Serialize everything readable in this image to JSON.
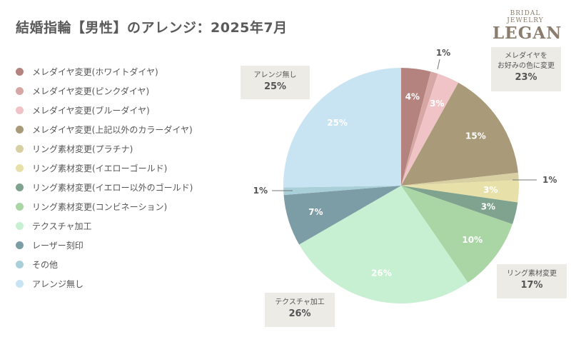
{
  "title": "結婚指輪【男性】のアレンジ：2025年7月",
  "logo": {
    "sub": "BRIDAL JEWELRY",
    "main": "LEGAN"
  },
  "chart_data": {
    "type": "pie",
    "title": "結婚指輪【男性】のアレンジ：2025年7月",
    "legend_position": "left",
    "slices": [
      {
        "label": "メレダイヤ変更(ホワイトダイヤ)",
        "value": 4,
        "display": "4%",
        "color": "#b5837f"
      },
      {
        "label": "メレダイヤ変更(ピンクダイヤ)",
        "value": 1,
        "display": "1%",
        "color": "#d6a7a5"
      },
      {
        "label": "メレダイヤ変更(ブルーダイヤ)",
        "value": 3,
        "display": "3%",
        "color": "#f0c4c6"
      },
      {
        "label": "メレダイヤ変更(上記以外のカラーダイヤ)",
        "value": 15,
        "display": "15%",
        "color": "#a99a79"
      },
      {
        "label": "リング素材変更(プラチナ)",
        "value": 1,
        "display": "1%",
        "color": "#d8cfa3"
      },
      {
        "label": "リング素材変更(イエローゴールド)",
        "value": 3,
        "display": "3%",
        "color": "#e7e1a9"
      },
      {
        "label": "リング素材変更(イエロー以外のゴールド)",
        "value": 3,
        "display": "3%",
        "color": "#7fa38e"
      },
      {
        "label": "リング素材変更(コンビネーション)",
        "value": 10,
        "display": "10%",
        "color": "#a9d6a4"
      },
      {
        "label": "テクスチャ加工",
        "value": 26,
        "display": "26%",
        "color": "#c7f0d2"
      },
      {
        "label": "レーザー刻印",
        "value": 7,
        "display": "7%",
        "color": "#7c9ca6"
      },
      {
        "label": "その他",
        "value": 1,
        "display": "1%",
        "color": "#a9cfd9"
      },
      {
        "label": "アレンジ無し",
        "value": 25,
        "display": "25%",
        "color": "#c8e3f2"
      }
    ]
  },
  "callouts": {
    "melee": {
      "line1": "メレダイヤを",
      "line2": "お好みの色に変更",
      "pct": "23%"
    },
    "no_arrange": {
      "line1": "アレンジ無し",
      "pct": "25%"
    },
    "material": {
      "line1": "リング素材変更",
      "pct": "17%"
    },
    "texture": {
      "line1": "テクスチャ加工",
      "pct": "26%"
    }
  }
}
